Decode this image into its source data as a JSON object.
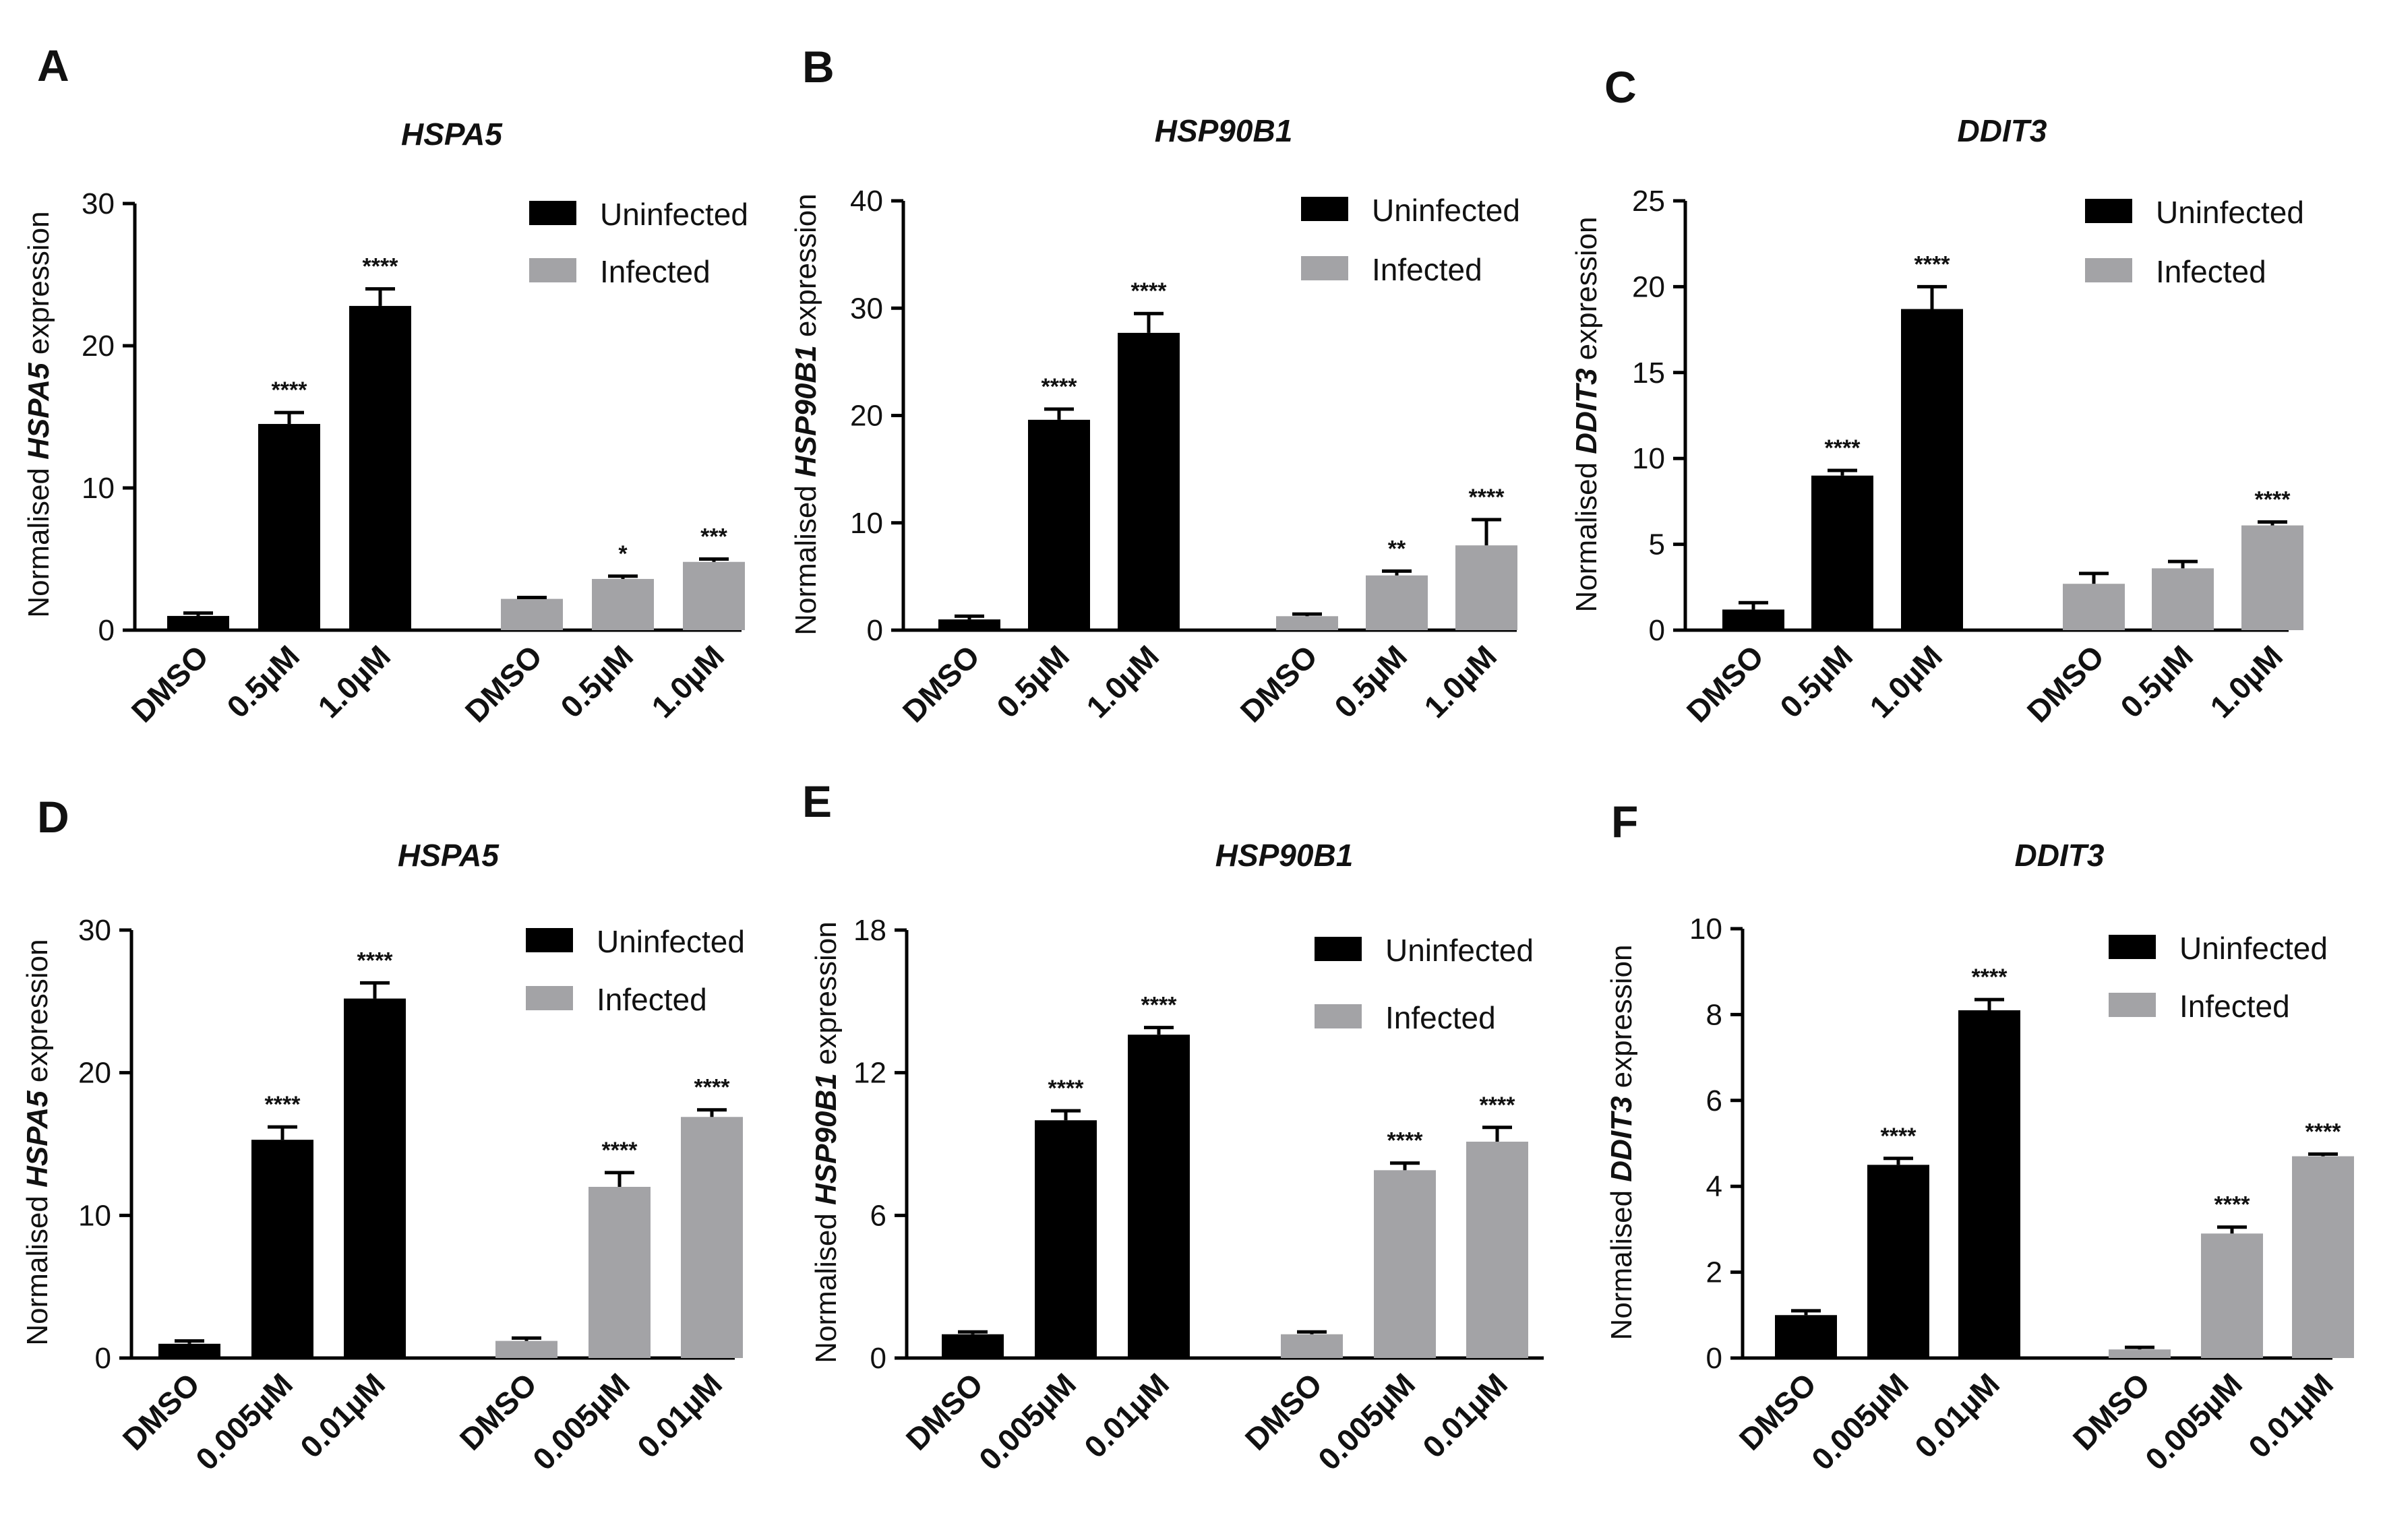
{
  "colors": {
    "uninfected": "#000000",
    "infected": "#a3a3a6",
    "axis": "#000000"
  },
  "legend": {
    "uninfected": "Uninfected",
    "infected": "Infected"
  },
  "chart_data": [
    {
      "panel": "A",
      "type": "bar",
      "title": "HSPA5",
      "ylabel_prefix": "Normalised ",
      "ylabel_gene": "HSPA5",
      "ylabel_suffix": " expression",
      "ylim": [
        0,
        30
      ],
      "yticks": [
        "0",
        "10",
        "20",
        "30"
      ],
      "legend_position": "top-right",
      "categories": [
        "DMSO",
        "0.5µM",
        "1.0µM"
      ],
      "series": [
        {
          "name": "Uninfected",
          "values": [
            1.0,
            14.5,
            22.8
          ],
          "errors": [
            0.2,
            0.8,
            1.2
          ],
          "significance": [
            "",
            "****",
            "****"
          ]
        },
        {
          "name": "Infected",
          "values": [
            2.2,
            3.6,
            4.8
          ],
          "errors": [
            0.1,
            0.2,
            0.2
          ],
          "significance": [
            "",
            "*",
            "***"
          ]
        }
      ]
    },
    {
      "panel": "B",
      "type": "bar",
      "title": "HSP90B1",
      "ylabel_prefix": "Normalised ",
      "ylabel_gene": "HSP90B1",
      "ylabel_suffix": " expression",
      "ylim": [
        0,
        40
      ],
      "yticks": [
        "0",
        "10",
        "20",
        "30",
        "40"
      ],
      "legend_position": "top-right",
      "categories": [
        "DMSO",
        "0.5µM",
        "1.0µM"
      ],
      "series": [
        {
          "name": "Uninfected",
          "values": [
            1.0,
            19.6,
            27.7
          ],
          "errors": [
            0.3,
            1.0,
            1.8
          ],
          "significance": [
            "",
            "****",
            "****"
          ]
        },
        {
          "name": "Infected",
          "values": [
            1.3,
            5.1,
            7.9
          ],
          "errors": [
            0.2,
            0.4,
            2.4
          ],
          "significance": [
            "",
            "**",
            "****"
          ]
        }
      ]
    },
    {
      "panel": "C",
      "type": "bar",
      "title": "DDIT3",
      "ylabel_prefix": "Normalised ",
      "ylabel_gene": "DDIT3",
      "ylabel_suffix": " expression",
      "ylim": [
        0,
        25
      ],
      "yticks": [
        "0",
        "5",
        "10",
        "15",
        "20",
        "25"
      ],
      "legend_position": "top-right",
      "categories": [
        "DMSO",
        "0.5µM",
        "1.0µM"
      ],
      "series": [
        {
          "name": "Uninfected",
          "values": [
            1.2,
            9.0,
            18.7
          ],
          "errors": [
            0.4,
            0.3,
            1.3
          ],
          "significance": [
            "",
            "****",
            "****"
          ]
        },
        {
          "name": "Infected",
          "values": [
            2.7,
            3.6,
            6.1
          ],
          "errors": [
            0.6,
            0.4,
            0.2
          ],
          "significance": [
            "",
            "",
            "****"
          ]
        }
      ]
    },
    {
      "panel": "D",
      "type": "bar",
      "title": "HSPA5",
      "ylabel_prefix": "Normalised ",
      "ylabel_gene": "HSPA5",
      "ylabel_suffix": " expression",
      "ylim": [
        0,
        30
      ],
      "yticks": [
        "0",
        "10",
        "20",
        "30"
      ],
      "legend_position": "top-right",
      "categories": [
        "DMSO",
        "0.005µM",
        "0.01µM"
      ],
      "series": [
        {
          "name": "Uninfected",
          "values": [
            1.0,
            15.3,
            25.2
          ],
          "errors": [
            0.2,
            0.9,
            1.1
          ],
          "significance": [
            "",
            "****",
            "****"
          ]
        },
        {
          "name": "Infected",
          "values": [
            1.2,
            12.0,
            16.9
          ],
          "errors": [
            0.2,
            1.0,
            0.5
          ],
          "significance": [
            "",
            "****",
            "****"
          ]
        }
      ]
    },
    {
      "panel": "E",
      "type": "bar",
      "title": "HSP90B1",
      "ylabel_prefix": "Normalised ",
      "ylabel_gene": "HSP90B1",
      "ylabel_suffix": " expression",
      "ylim": [
        0,
        18
      ],
      "yticks": [
        "0",
        "6",
        "12",
        "18"
      ],
      "legend_position": "top-right",
      "categories": [
        "DMSO",
        "0.005µM",
        "0.01µM"
      ],
      "series": [
        {
          "name": "Uninfected",
          "values": [
            1.0,
            10.0,
            13.6
          ],
          "errors": [
            0.1,
            0.4,
            0.3
          ],
          "significance": [
            "",
            "****",
            "****"
          ]
        },
        {
          "name": "Infected",
          "values": [
            1.0,
            7.9,
            9.1
          ],
          "errors": [
            0.1,
            0.3,
            0.6
          ],
          "significance": [
            "",
            "****",
            "****"
          ]
        }
      ]
    },
    {
      "panel": "F",
      "type": "bar",
      "title": "DDIT3",
      "ylabel_prefix": "Normalised ",
      "ylabel_gene": "DDIT3",
      "ylabel_suffix": " expression",
      "ylim": [
        0,
        10
      ],
      "yticks": [
        "0",
        "2",
        "4",
        "6",
        "8",
        "10"
      ],
      "legend_position": "top-right",
      "categories": [
        "DMSO",
        "0.005µM",
        "0.01µM"
      ],
      "series": [
        {
          "name": "Uninfected",
          "values": [
            1.0,
            4.5,
            8.1
          ],
          "errors": [
            0.1,
            0.15,
            0.25
          ],
          "significance": [
            "",
            "****",
            "****"
          ]
        },
        {
          "name": "Infected",
          "values": [
            0.2,
            2.9,
            4.7
          ],
          "errors": [
            0.05,
            0.15,
            0.05
          ],
          "significance": [
            "",
            "****",
            "****"
          ]
        }
      ]
    }
  ]
}
